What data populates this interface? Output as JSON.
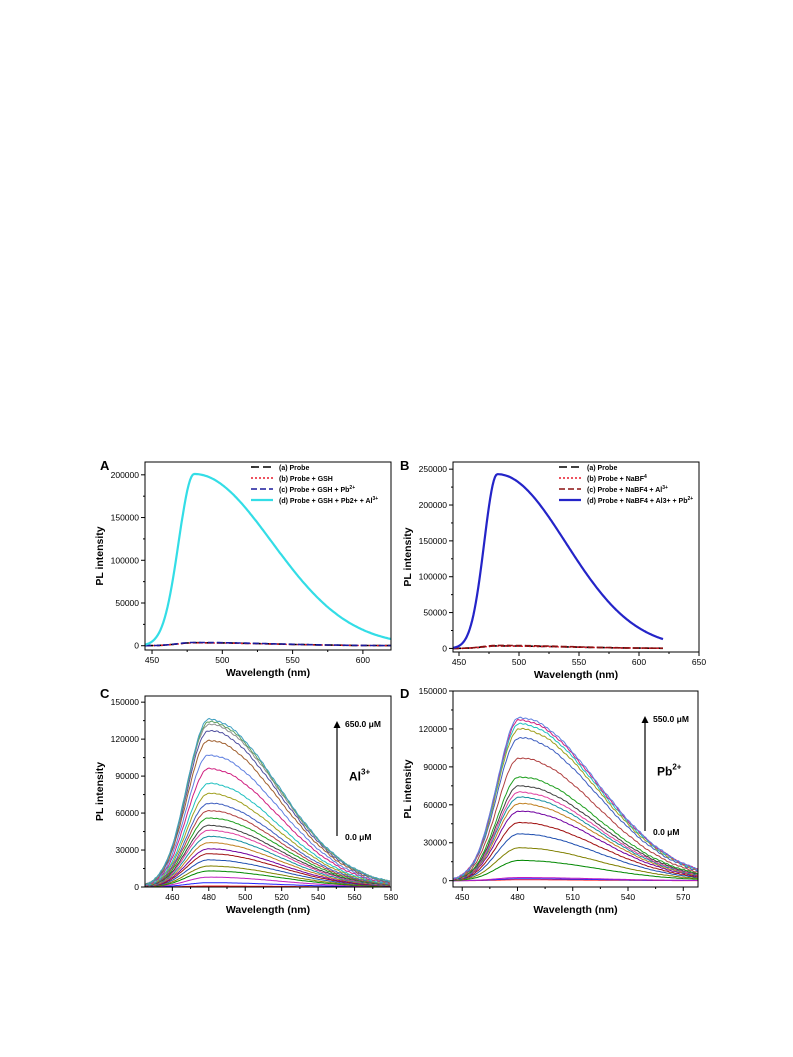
{
  "chart_data": [
    {
      "panel_label": "A",
      "type": "line",
      "xlabel": "Wavelength (nm)",
      "ylabel": "PL intensity",
      "xlim": [
        445,
        620
      ],
      "ylim": [
        -5000,
        215000
      ],
      "xticks": [
        450,
        500,
        550,
        600
      ],
      "yticks": [
        0,
        50000,
        100000,
        150000,
        200000
      ],
      "grid": false,
      "legend_position": "top-right",
      "series": [
        {
          "name": "(a) Probe",
          "color": "#000000",
          "dash": "8,4",
          "width": 1.6,
          "legend_sub": "",
          "peak": 3500,
          "peak_x": 480,
          "w_left": 12,
          "w_right": 55,
          "x_start": 445,
          "x_end": 620
        },
        {
          "name": "(b) Probe + GSH",
          "color": "#e8192c",
          "dash": "2,2",
          "width": 1.4,
          "legend_sub": "",
          "peak": 3300,
          "peak_x": 480,
          "w_left": 12,
          "w_right": 55,
          "x_start": 445,
          "x_end": 620
        },
        {
          "name": "(c) Probe + GSH + Pb",
          "color": "#1a1a9c",
          "dash": "6,3",
          "width": 1.6,
          "legend_sub": "2+",
          "peak": 3800,
          "peak_x": 480,
          "w_left": 12,
          "w_right": 55,
          "x_start": 445,
          "x_end": 620
        },
        {
          "name": "(d) Probe + GSH + Pb2+ + Al",
          "color": "#33dde6",
          "dash": "",
          "width": 2.2,
          "legend_sub": "3+",
          "peak": 201000,
          "peak_x": 480,
          "w_left": 11,
          "w_right": 55,
          "x_start": 445,
          "x_end": 620
        }
      ]
    },
    {
      "panel_label": "B",
      "type": "line",
      "xlabel": "Wavelength (nm)",
      "ylabel": "PL intensity",
      "xlim": [
        445,
        650
      ],
      "ylim": [
        -5000,
        260000
      ],
      "xticks": [
        450,
        500,
        550,
        600,
        650
      ],
      "yticks": [
        0,
        50000,
        100000,
        150000,
        200000,
        250000
      ],
      "grid": false,
      "legend_position": "top-right",
      "series": [
        {
          "name": "(a) Probe",
          "color": "#000000",
          "dash": "8,4",
          "width": 1.6,
          "legend_sub": "",
          "peak": 3500,
          "peak_x": 482,
          "w_left": 12,
          "w_right": 58,
          "x_start": 445,
          "x_end": 620
        },
        {
          "name": "(b) Probe + NaBF",
          "color": "#e8192c",
          "dash": "2,2",
          "width": 1.4,
          "legend_sub": "4",
          "peak": 3200,
          "peak_x": 482,
          "w_left": 12,
          "w_right": 58,
          "x_start": 445,
          "x_end": 620
        },
        {
          "name": "(c) Probe + NaBF4 + Al",
          "color": "#8b1010",
          "dash": "6,3",
          "width": 1.6,
          "legend_sub": "3+",
          "peak": 4200,
          "peak_x": 482,
          "w_left": 12,
          "w_right": 58,
          "x_start": 445,
          "x_end": 620
        },
        {
          "name": "(d) Probe + NaBF4 + Al3+ + Pb",
          "color": "#2424c8",
          "dash": "",
          "width": 2.2,
          "legend_sub": "2+",
          "peak": 243000,
          "peak_x": 482,
          "w_left": 11,
          "w_right": 57,
          "x_start": 445,
          "x_end": 620
        }
      ]
    },
    {
      "panel_label": "C",
      "type": "line",
      "xlabel": "Wavelength (nm)",
      "ylabel": "PL intensity",
      "xlim": [
        445,
        580
      ],
      "ylim": [
        0,
        155000
      ],
      "xticks": [
        460,
        480,
        500,
        520,
        540,
        560,
        580
      ],
      "yticks": [
        0,
        30000,
        60000,
        90000,
        120000,
        150000
      ],
      "grid": false,
      "ion_base": "Al",
      "ion_sup": "3+",
      "conc_max": "650.0 μM",
      "conc_min": "0.0 μM",
      "peak_x": 480,
      "w_left": 12,
      "w_right": 38,
      "peaks": [
        800,
        3500,
        8000,
        13000,
        17000,
        22000,
        27000,
        31000,
        36000,
        41000,
        46000,
        50000,
        56000,
        62000,
        68000,
        76000,
        84000,
        96000,
        107000,
        119000,
        127000,
        132000,
        134000,
        136000
      ]
    },
    {
      "panel_label": "D",
      "type": "line",
      "xlabel": "Wavelength (nm)",
      "ylabel": "PL intensity",
      "xlim": [
        445,
        578
      ],
      "ylim": [
        -5000,
        150000
      ],
      "xticks": [
        450,
        480,
        510,
        540,
        570
      ],
      "yticks": [
        0,
        30000,
        60000,
        90000,
        120000,
        150000
      ],
      "grid": false,
      "ion_base": "Pb",
      "ion_sup": "2+",
      "conc_max": "550.0 μM",
      "conc_min": "0.0 μM",
      "peak_x": 481,
      "w_left": 12,
      "w_right": 42,
      "peaks": [
        700,
        1500,
        2500,
        16000,
        26000,
        37000,
        46000,
        55000,
        61000,
        66000,
        70000,
        75000,
        82000,
        97000,
        113000,
        120000,
        124000,
        127000,
        129000
      ]
    }
  ]
}
